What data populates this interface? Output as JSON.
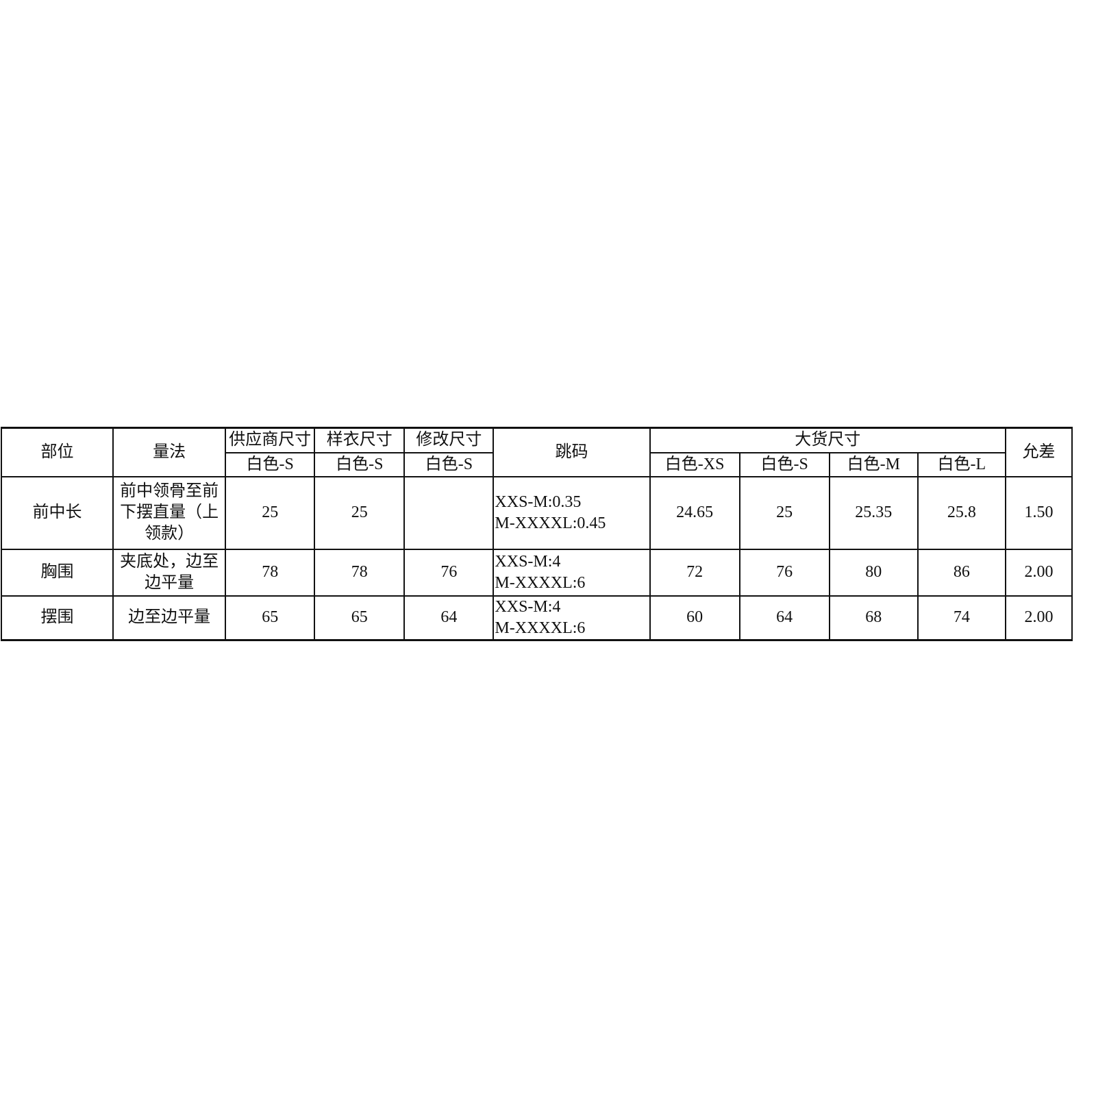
{
  "headers": {
    "part": "部位",
    "method": "量法",
    "supplier_size": "供应商尺寸",
    "sample_size": "样衣尺寸",
    "revised_size": "修改尺寸",
    "grading": "跳码",
    "bulk_size": "大货尺寸",
    "tolerance": "允差",
    "supplier_sub": "白色-S",
    "sample_sub": "白色-S",
    "revised_sub": "白色-S",
    "bulk_sub": [
      "白色-XS",
      "白色-S",
      "白色-M",
      "白色-L"
    ]
  },
  "rows": [
    {
      "part": "前中长",
      "method": "前中领骨至前下摆直量（上领款）",
      "supplier": "25",
      "sample": "25",
      "revised": "",
      "grading_1": "XXS-M:0.35",
      "grading_2": "M-XXXXL:0.45",
      "bulk": [
        "24.65",
        "25",
        "25.35",
        "25.8"
      ],
      "tolerance": "1.50"
    },
    {
      "part": "胸围",
      "method": "夹底处，边至边平量",
      "supplier": "78",
      "sample": "78",
      "revised": "76",
      "grading_1": "XXS-M:4",
      "grading_2": "M-XXXXL:6",
      "bulk": [
        "72",
        "76",
        "80",
        "86"
      ],
      "tolerance": "2.00"
    },
    {
      "part": "摆围",
      "method": "边至边平量",
      "supplier": "65",
      "sample": "65",
      "revised": "64",
      "grading_1": "XXS-M:4",
      "grading_2": "M-XXXXL:6",
      "bulk": [
        "60",
        "64",
        "68",
        "74"
      ],
      "tolerance": "2.00"
    }
  ]
}
